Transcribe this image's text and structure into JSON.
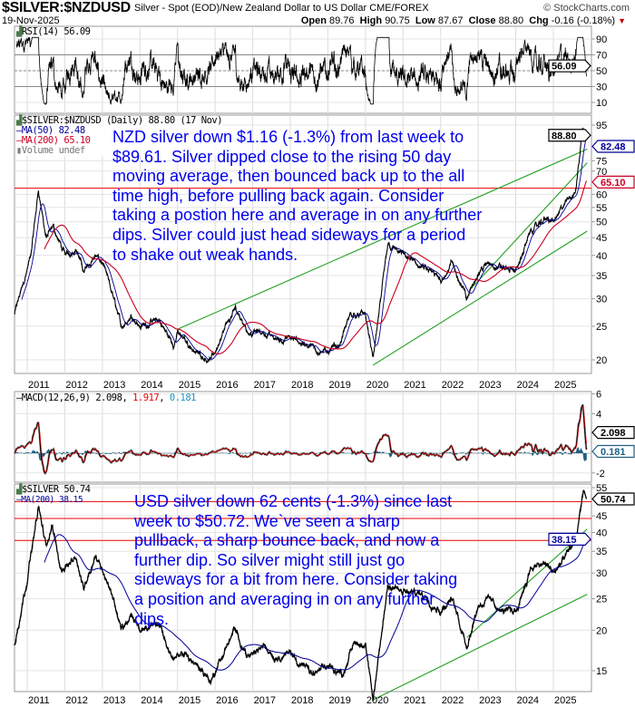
{
  "header": {
    "symbol": "$SILVER:$NZDUSD",
    "description": "Silver - Spot (EOD)/New Zealand Dollar to US Dollar  CME/FOREX",
    "date": "19-Nov-2025",
    "brand": "© StockCharts.com",
    "open_label": "Open",
    "open": "89.76",
    "high_label": "High",
    "high": "90.75",
    "low_label": "Low",
    "low": "87.67",
    "close_label": "Close",
    "close": "88.80",
    "chg_label": "Chg",
    "chg": "-0.16 (-0.18%)",
    "down_color": "#cc0000"
  },
  "notes": {
    "nzd": "NZD silver down $1.16 (-1.3%) from last week to\n$89.61. Silver dipped close to the rising 50 day\nmoving average, then bounced back up to the all\ntime high, before pulling back again. Consider\ntaking a postion here and average in on any further\ndips. Silver could just head sideways for a period\nto shake out weak hands.",
    "usd": "USD silver down 62 cents (-1.3%) since last\nweek to $50.72. We`ve seen a sharp\npullback, a sharp bounce back, and now a\nfurther dip. So silver might still just go\nsideways for a bit from here. Consider taking\na position and averaging in on any further\ndips."
  },
  "chart_data": [
    {
      "type": "line",
      "panel": "RSI",
      "legend": "RSI(14) 56.09",
      "current": "56.09",
      "yticks": [
        "90",
        "70",
        "50",
        "30",
        "10"
      ],
      "ylim": [
        0,
        100
      ],
      "reference_lines": [
        70,
        50,
        30
      ]
    },
    {
      "type": "line",
      "panel": "price",
      "legend": [
        "$SILVER:$NZDUSD (Daily) 88.80 (17 Nov)",
        "MA(50) 82.48",
        "MA(200) 65.10",
        "Volume undef"
      ],
      "scale": "log",
      "ylim": [
        17,
        97
      ],
      "yticks": [
        "95",
        "75",
        "70",
        "60",
        "55",
        "50",
        "45",
        "40",
        "35",
        "30",
        "25",
        "20"
      ],
      "current_tags": {
        "price": "88.80",
        "ma50": "82.48",
        "ma200": "65.10"
      },
      "xticks": [
        "2011",
        "2012",
        "2013",
        "2014",
        "2015",
        "2016",
        "2017",
        "2018",
        "2019",
        "2020",
        "2021",
        "2022",
        "2023",
        "2024",
        "2025"
      ],
      "approx_price": [
        [
          2010.66,
          27
        ],
        [
          2011.1,
          40
        ],
        [
          2011.3,
          62
        ],
        [
          2011.5,
          45
        ],
        [
          2011.7,
          48
        ],
        [
          2012.0,
          40
        ],
        [
          2012.3,
          42
        ],
        [
          2012.5,
          36
        ],
        [
          2012.8,
          40
        ],
        [
          2013.0,
          38
        ],
        [
          2013.3,
          30
        ],
        [
          2013.5,
          25
        ],
        [
          2013.8,
          27
        ],
        [
          2014.0,
          25
        ],
        [
          2014.5,
          26
        ],
        [
          2014.9,
          22
        ],
        [
          2015.0,
          24
        ],
        [
          2015.5,
          21
        ],
        [
          2015.9,
          20
        ],
        [
          2016.3,
          25
        ],
        [
          2016.55,
          28
        ],
        [
          2016.9,
          24
        ],
        [
          2017.3,
          24
        ],
        [
          2017.6,
          23
        ],
        [
          2018.0,
          23
        ],
        [
          2018.5,
          22
        ],
        [
          2018.9,
          21
        ],
        [
          2019.3,
          22
        ],
        [
          2019.6,
          27
        ],
        [
          2020.0,
          27
        ],
        [
          2020.2,
          20
        ],
        [
          2020.6,
          43
        ],
        [
          2021.0,
          40
        ],
        [
          2021.5,
          37
        ],
        [
          2022.0,
          34
        ],
        [
          2022.3,
          38
        ],
        [
          2022.7,
          30
        ],
        [
          2023.0,
          36
        ],
        [
          2023.3,
          38
        ],
        [
          2023.6,
          37
        ],
        [
          2024.0,
          36
        ],
        [
          2024.4,
          47
        ],
        [
          2024.8,
          51
        ],
        [
          2025.0,
          50
        ],
        [
          2025.3,
          56
        ],
        [
          2025.6,
          62
        ],
        [
          2025.78,
          94
        ],
        [
          2025.88,
          88.8
        ]
      ],
      "horizontal_lines": [
        {
          "value": 62.5,
          "color": "#ee0000"
        }
      ],
      "trendlines": [
        {
          "from": [
            2015.0,
            24.5
          ],
          "to": [
            2025.9,
            81
          ],
          "color": "#22a022"
        },
        {
          "from": [
            2022.8,
            32
          ],
          "to": [
            2025.9,
            74
          ],
          "color": "#22a022"
        },
        {
          "from": [
            2020.2,
            19.3
          ],
          "to": [
            2025.9,
            47
          ],
          "color": "#22a022"
        }
      ],
      "colors": {
        "price": "#000000",
        "ma50": "#000099",
        "ma200": "#cc0022"
      }
    },
    {
      "type": "line",
      "panel": "MACD",
      "legend": {
        "name": "MACD(12,26,9)",
        "macd": "2.098",
        "signal": "1.917",
        "hist": "0.181"
      },
      "yticks": [
        "6",
        "4",
        "-2"
      ],
      "ylim": [
        -3,
        6.5
      ],
      "current_tags": {
        "macd": "2.098",
        "hist": "0.181"
      },
      "colors": {
        "macd": "#000000",
        "signal": "#ee0000",
        "hist": "#1f6080"
      }
    },
    {
      "type": "line",
      "panel": "price",
      "legend": [
        "$SILVER 50.74",
        "MA(200) 38.15"
      ],
      "scale": "log",
      "ylim": [
        12,
        56
      ],
      "yticks": [
        "55",
        "45",
        "40",
        "35",
        "30",
        "25",
        "20",
        "15"
      ],
      "current_tags": {
        "price": "50.74",
        "ma200": "38.15"
      },
      "xticks": [
        "2011",
        "2012",
        "2013",
        "2014",
        "2015",
        "2016",
        "2017",
        "2018",
        "2019",
        "2020",
        "2021",
        "2022",
        "2023",
        "2024",
        "2025"
      ],
      "approx_price": [
        [
          2010.66,
          18
        ],
        [
          2011.0,
          29
        ],
        [
          2011.3,
          48
        ],
        [
          2011.5,
          36
        ],
        [
          2011.65,
          42
        ],
        [
          2011.9,
          31
        ],
        [
          2012.3,
          33
        ],
        [
          2012.5,
          27
        ],
        [
          2012.8,
          34
        ],
        [
          2013.0,
          31
        ],
        [
          2013.3,
          25
        ],
        [
          2013.5,
          20
        ],
        [
          2013.8,
          22
        ],
        [
          2014.0,
          20
        ],
        [
          2014.5,
          21
        ],
        [
          2014.9,
          16
        ],
        [
          2015.2,
          17
        ],
        [
          2015.9,
          14
        ],
        [
          2016.5,
          20
        ],
        [
          2016.9,
          16.5
        ],
        [
          2017.3,
          18
        ],
        [
          2017.6,
          16.5
        ],
        [
          2018.0,
          17
        ],
        [
          2018.6,
          14.5
        ],
        [
          2019.0,
          15.5
        ],
        [
          2019.4,
          14.7
        ],
        [
          2019.7,
          18.5
        ],
        [
          2020.0,
          18
        ],
        [
          2020.2,
          12
        ],
        [
          2020.6,
          28
        ],
        [
          2021.0,
          26
        ],
        [
          2021.5,
          26
        ],
        [
          2022.0,
          23
        ],
        [
          2022.3,
          25
        ],
        [
          2022.7,
          18
        ],
        [
          2023.0,
          24
        ],
        [
          2023.3,
          25
        ],
        [
          2023.6,
          23
        ],
        [
          2024.0,
          23
        ],
        [
          2024.4,
          31
        ],
        [
          2024.8,
          32
        ],
        [
          2025.0,
          30
        ],
        [
          2025.3,
          33
        ],
        [
          2025.6,
          38
        ],
        [
          2025.8,
          54
        ],
        [
          2025.88,
          50.74
        ]
      ],
      "horizontal_lines": [
        {
          "value": 49.8,
          "color": "#ee0000"
        },
        {
          "value": 44.2,
          "color": "#ee0000"
        },
        {
          "value": 37.8,
          "color": "#ee0000"
        }
      ],
      "trendlines": [
        {
          "from": [
            2020.2,
            12.2
          ],
          "to": [
            2025.9,
            25.8
          ],
          "color": "#22a022"
        },
        {
          "from": [
            2022.7,
            19
          ],
          "to": [
            2025.9,
            41
          ],
          "color": "#22a022"
        }
      ],
      "colors": {
        "price": "#000000",
        "ma200": "#000099"
      }
    }
  ]
}
